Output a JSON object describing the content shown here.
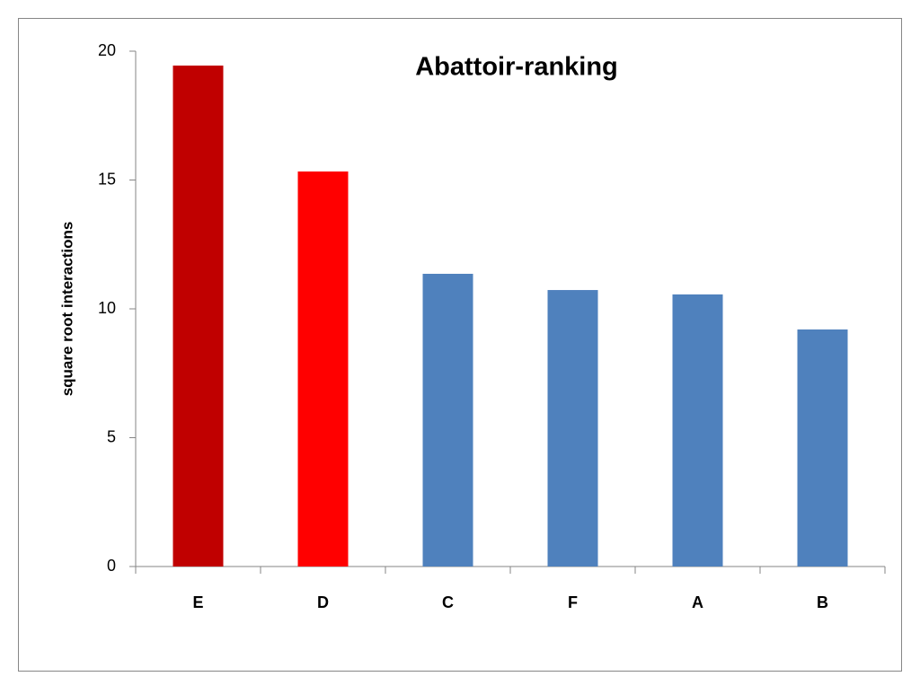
{
  "chart_data": {
    "type": "bar",
    "title": "Abattoir-ranking",
    "y_label": "square root interactions",
    "categories": [
      "E",
      "D",
      "C",
      "F",
      "A",
      "B"
    ],
    "values": [
      19.44,
      15.33,
      11.36,
      10.73,
      10.56,
      9.2
    ],
    "colors": [
      "#c00000",
      "#ff0000",
      "#4f81bd",
      "#4f81bd",
      "#4f81bd",
      "#4f81bd"
    ],
    "ylim": [
      0,
      20
    ],
    "yticks": [
      0,
      5,
      10,
      15,
      20
    ],
    "grid": false
  }
}
